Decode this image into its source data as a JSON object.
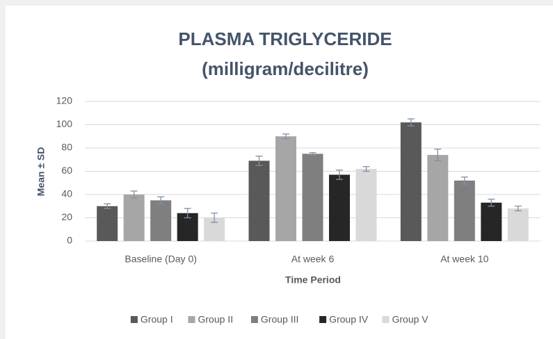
{
  "chart_data": {
    "type": "bar",
    "title": "PLASMA  TRIGLYCERIDE",
    "subtitle": "(milligram/decilitre)",
    "x_label": "Time Period",
    "y_label": "Mean ± SD",
    "categories": [
      "Baseline (Day 0)",
      "At week 6",
      "At week 10"
    ],
    "series": [
      {
        "name": "Group I",
        "color": "#595959",
        "values": [
          30,
          69,
          102
        ],
        "errors": [
          2,
          4,
          3
        ]
      },
      {
        "name": "Group II",
        "color": "#a6a6a6",
        "values": [
          40,
          90,
          74
        ],
        "errors": [
          3,
          2,
          5
        ]
      },
      {
        "name": "Group III",
        "color": "#7f7f7f",
        "values": [
          35,
          75,
          52
        ],
        "errors": [
          3,
          1,
          3
        ]
      },
      {
        "name": "Group IV",
        "color": "#262626",
        "values": [
          24,
          57,
          33
        ],
        "errors": [
          4,
          4,
          3
        ]
      },
      {
        "name": "Group V",
        "color": "#d9d9d9",
        "values": [
          20,
          62,
          28
        ],
        "errors": [
          4,
          2,
          2
        ]
      }
    ],
    "ylim": [
      0,
      120
    ],
    "yticks": [
      0,
      20,
      40,
      60,
      80,
      100,
      120
    ],
    "grid": true,
    "legend": "bottom"
  }
}
